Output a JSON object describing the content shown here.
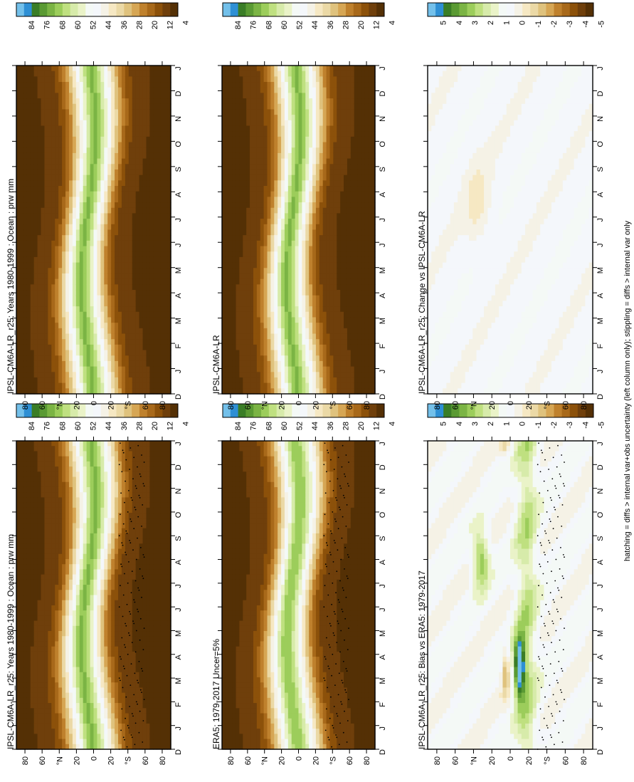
{
  "footnote": "hatching = diffs > internal var+obs uncertainty (left column only); stippling = diffs > internal var only",
  "palettes": {
    "abs": [
      "#543005",
      "#6f3f0b",
      "#8c510a",
      "#a8691a",
      "#bf812d",
      "#d6a654",
      "#dfc27d",
      "#ebd9a6",
      "#f6e8c3",
      "#f5f2e6",
      "#f4f7fb",
      "#f4f9f6",
      "#eaf3c8",
      "#d7ebaa",
      "#bfe080",
      "#9ccd5b",
      "#7bb444",
      "#5a9a33",
      "#3a7d26",
      "#2e8fd4",
      "#73c0ea"
    ],
    "diff": [
      "#543005",
      "#6f3f0b",
      "#8c510a",
      "#a8691a",
      "#bf812d",
      "#d6a654",
      "#dfc27d",
      "#ebd9a6",
      "#f6e8c3",
      "#f5f2e6",
      "#f4f7fb",
      "#f4f9f6",
      "#eaf3c8",
      "#d7ebaa",
      "#bfe080",
      "#9ccd5b",
      "#7bb444",
      "#5a9a33",
      "#3a7d26",
      "#2e8fd4",
      "#73c0ea"
    ]
  },
  "chart_data": [
    {
      "type": "heatmap",
      "title": "IPSL-CM6A-LR_r25: Years 1980-1999 : Ocean : prw mm",
      "x_ticks": [
        "D",
        "J",
        "F",
        "M",
        "A",
        "M",
        "J",
        "J",
        "A",
        "S",
        "O",
        "N",
        "D",
        "J"
      ],
      "y_ticks": [
        "80",
        "60",
        "°N",
        "20",
        "0",
        "20",
        "°S",
        "60",
        "80"
      ],
      "ylim": [
        -90,
        90
      ],
      "kind": "abs",
      "colorbar": {
        "labels": [
          "84",
          "76",
          "68",
          "60",
          "52",
          "44",
          "36",
          "28",
          "20",
          "12",
          "4"
        ],
        "palette": "abs"
      },
      "stipple": true,
      "panel": "top-left"
    },
    {
      "type": "heatmap",
      "title": "IPSL-CM6A-LR_r25: Years 1980-1999 : Ocean : prw mm",
      "x_ticks": [
        "D",
        "J",
        "F",
        "M",
        "A",
        "M",
        "J",
        "J",
        "A",
        "S",
        "O",
        "N",
        "D",
        "J"
      ],
      "y_ticks": [
        "80",
        "60",
        "°N",
        "20",
        "0",
        "20",
        "°S",
        "60",
        "80"
      ],
      "ylim": [
        -90,
        90
      ],
      "kind": "abs",
      "colorbar": {
        "labels": [
          "84",
          "76",
          "68",
          "60",
          "52",
          "44",
          "36",
          "28",
          "20",
          "12",
          "4"
        ],
        "palette": "abs"
      },
      "stipple": false,
      "panel": "top-right"
    },
    {
      "type": "heatmap",
      "title": "ERA5: 1979-2017 Uncer=5%",
      "x_ticks": [
        "D",
        "J",
        "F",
        "M",
        "A",
        "M",
        "J",
        "J",
        "A",
        "S",
        "O",
        "N",
        "D",
        "J"
      ],
      "y_ticks": [
        "80",
        "60",
        "°N",
        "20",
        "0",
        "20",
        "°S",
        "60",
        "80"
      ],
      "ylim": [
        -90,
        90
      ],
      "kind": "abs",
      "colorbar": {
        "labels": [
          "84",
          "76",
          "68",
          "60",
          "52",
          "44",
          "36",
          "28",
          "20",
          "12",
          "4"
        ],
        "palette": "abs"
      },
      "stipple": true,
      "panel": "mid-left"
    },
    {
      "type": "heatmap",
      "title": "IPSL-CM6A-LR",
      "x_ticks": [
        "D",
        "J",
        "F",
        "M",
        "A",
        "M",
        "J",
        "J",
        "A",
        "S",
        "O",
        "N",
        "D",
        "J"
      ],
      "y_ticks": [
        "80",
        "60",
        "°N",
        "20",
        "0",
        "20",
        "°S",
        "60",
        "80"
      ],
      "ylim": [
        -90,
        90
      ],
      "kind": "abs",
      "colorbar": {
        "labels": [
          "84",
          "76",
          "68",
          "60",
          "52",
          "44",
          "36",
          "28",
          "20",
          "12",
          "4"
        ],
        "palette": "abs"
      },
      "stipple": false,
      "panel": "mid-right"
    },
    {
      "type": "heatmap",
      "title": "IPSL-CM6A-LR_r25: Bias vs ERA5: 1979-2017",
      "x_ticks": [
        "D",
        "J",
        "F",
        "M",
        "A",
        "M",
        "J",
        "J",
        "A",
        "S",
        "O",
        "N",
        "D",
        "J"
      ],
      "y_ticks": [
        "80",
        "60",
        "°N",
        "20",
        "0",
        "20",
        "°S",
        "60",
        "80"
      ],
      "ylim": [
        -90,
        90
      ],
      "kind": "bias",
      "colorbar": {
        "labels": [
          "5",
          "4",
          "3",
          "2",
          "1",
          "0",
          "-1",
          "-2",
          "-3",
          "-4",
          "-5"
        ],
        "palette": "diff"
      },
      "stipple": true,
      "panel": "bottom-left"
    },
    {
      "type": "heatmap",
      "title": "IPSL-CM6A-LR_r25: Change vs IPSL-CM6A-LR",
      "x_ticks": [
        "D",
        "J",
        "F",
        "M",
        "A",
        "M",
        "J",
        "J",
        "A",
        "S",
        "O",
        "N",
        "D",
        "J"
      ],
      "y_ticks": [
        "80",
        "60",
        "°N",
        "20",
        "0",
        "20",
        "°S",
        "60",
        "80"
      ],
      "ylim": [
        -90,
        90
      ],
      "kind": "change",
      "colorbar": {
        "labels": [
          "5",
          "4",
          "3",
          "2",
          "1",
          "0",
          "-1",
          "-2",
          "-3",
          "-4",
          "-5"
        ],
        "palette": "diff"
      },
      "stipple": false,
      "panel": "bottom-right"
    }
  ]
}
